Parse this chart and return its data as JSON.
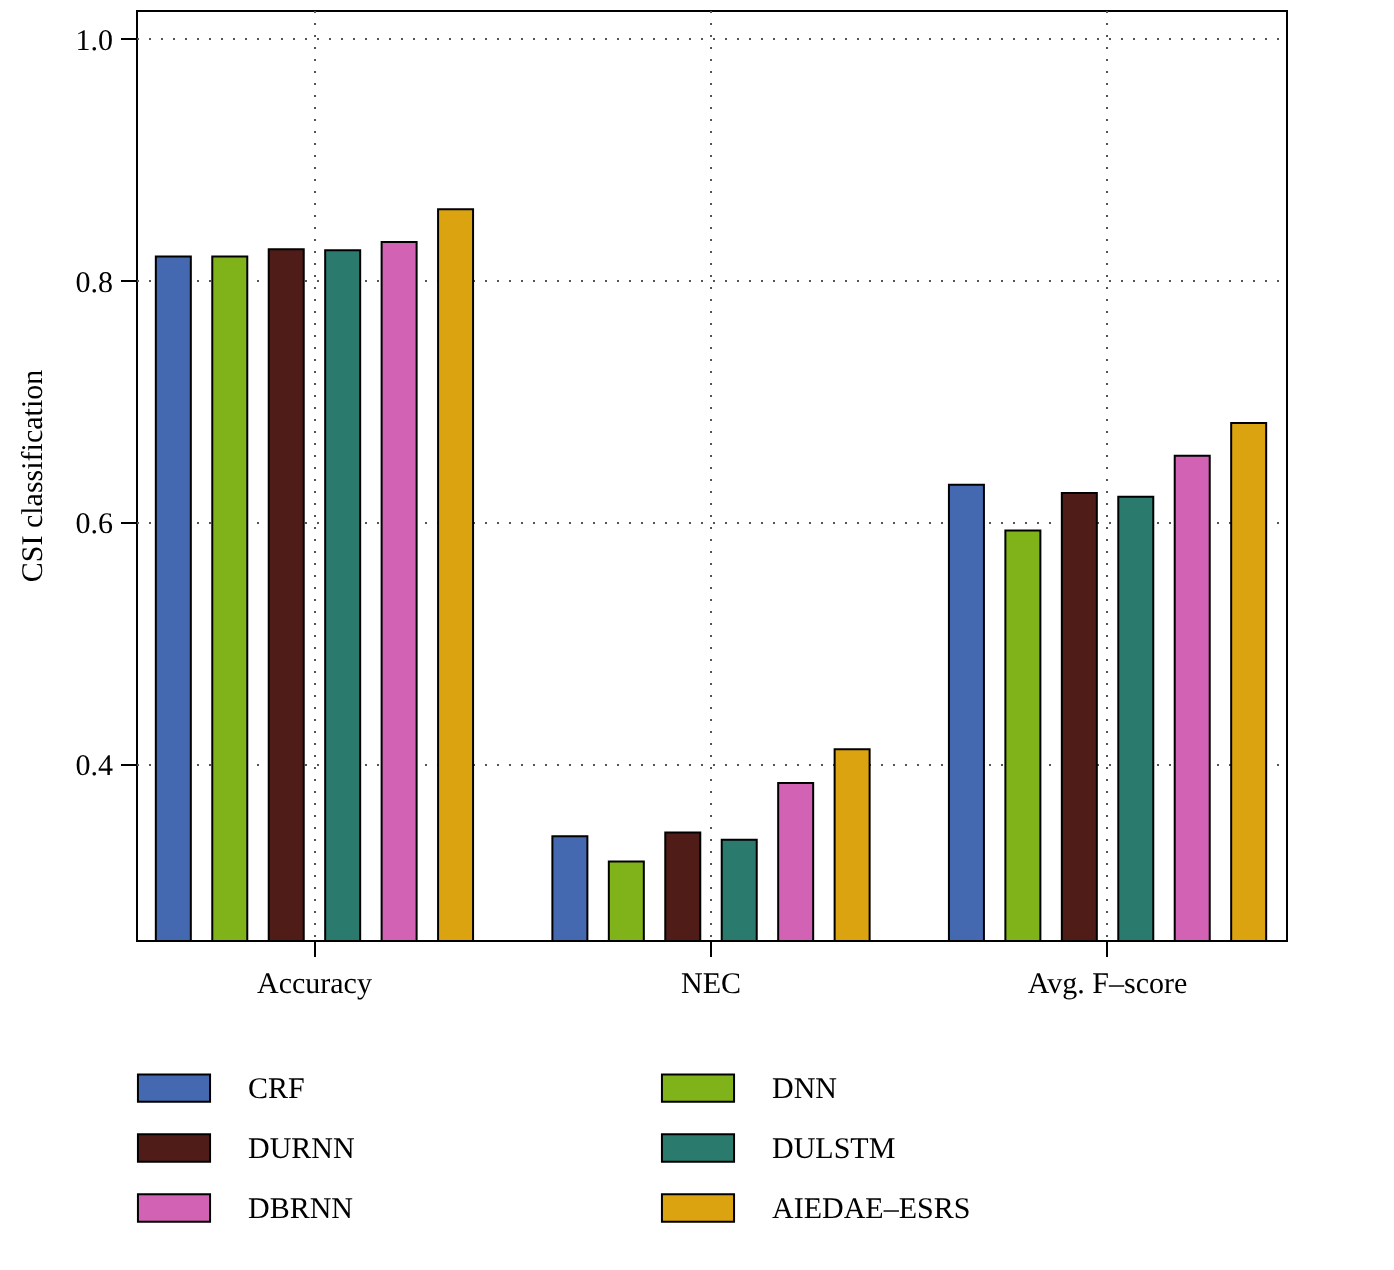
{
  "chart_data": {
    "type": "bar",
    "ylabel": "CSI classification",
    "categories": [
      "Accuracy",
      "NEC",
      "Avg. F–score"
    ],
    "series": [
      {
        "name": "CRF",
        "color": "#4469b0",
        "values": [
          0.82,
          0.34,
          0.631
        ]
      },
      {
        "name": "DNN",
        "color": "#80b21a",
        "values": [
          0.82,
          0.319,
          0.593
        ]
      },
      {
        "name": "DURNN",
        "color": "#4f1c17",
        "values": [
          0.826,
          0.343,
          0.624
        ]
      },
      {
        "name": "DULSTM",
        "color": "#2a7b6d",
        "values": [
          0.825,
          0.337,
          0.621
        ]
      },
      {
        "name": "DBRNN",
        "color": "#d262b4",
        "values": [
          0.832,
          0.384,
          0.655
        ]
      },
      {
        "name": "AIEDAE–ESRS",
        "color": "#dba30f",
        "values": [
          0.859,
          0.412,
          0.682
        ]
      }
    ],
    "ylim": [
      0.254,
      1.024
    ],
    "yticks": [
      0.4,
      0.6,
      0.8,
      {
        "value": 1.0,
        "label": "1.0"
      }
    ],
    "grid": true,
    "legend": "bottom"
  }
}
